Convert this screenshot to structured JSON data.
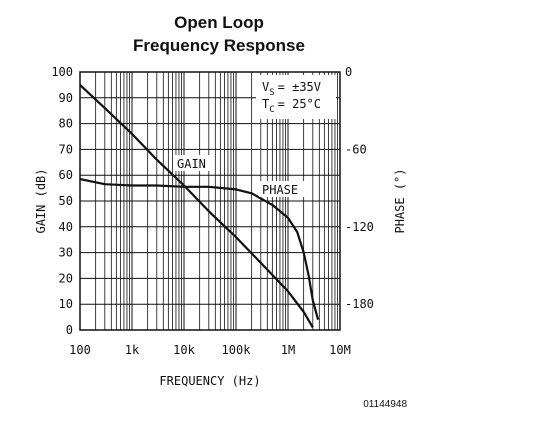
{
  "chart_data": {
    "type": "line",
    "title_line1": "Open Loop",
    "title_line2": "Frequency Response",
    "xlabel": "FREQUENCY (Hz)",
    "ylabel_left": "GAIN (dB)",
    "ylabel_right": "PHASE (°)",
    "x_scale": "log",
    "xlim": [
      100,
      10000000
    ],
    "ylim_left": [
      0,
      100
    ],
    "ylim_right": [
      0,
      -200
    ],
    "x_ticks": [
      {
        "value": 100,
        "label": "100"
      },
      {
        "value": 1000,
        "label": "1k"
      },
      {
        "value": 10000,
        "label": "10k"
      },
      {
        "value": 100000,
        "label": "100k"
      },
      {
        "value": 1000000,
        "label": "1M"
      },
      {
        "value": 10000000,
        "label": "10M"
      }
    ],
    "y_ticks_left": [
      {
        "value": 0,
        "label": "0"
      },
      {
        "value": 10,
        "label": "10"
      },
      {
        "value": 20,
        "label": "20"
      },
      {
        "value": 30,
        "label": "30"
      },
      {
        "value": 40,
        "label": "40"
      },
      {
        "value": 50,
        "label": "50"
      },
      {
        "value": 60,
        "label": "60"
      },
      {
        "value": 70,
        "label": "70"
      },
      {
        "value": 80,
        "label": "80"
      },
      {
        "value": 90,
        "label": "90"
      },
      {
        "value": 100,
        "label": "100"
      }
    ],
    "y_ticks_right": [
      {
        "value": 0,
        "label": "0"
      },
      {
        "value": -60,
        "label": "-60"
      },
      {
        "value": -120,
        "label": "-120"
      },
      {
        "value": -180,
        "label": "-180"
      }
    ],
    "grid": true,
    "series": [
      {
        "name": "GAIN",
        "axis": "left",
        "x": [
          100,
          300,
          1000,
          3000,
          10000,
          30000,
          100000,
          300000,
          1000000,
          2000000,
          3000000
        ],
        "y": [
          95,
          86,
          76,
          66,
          56,
          46,
          36,
          26,
          15,
          7,
          1
        ]
      },
      {
        "name": "PHASE",
        "axis": "right",
        "x": [
          100,
          300,
          1000,
          3000,
          10000,
          30000,
          100000,
          200000,
          500000,
          1000000,
          1500000,
          2000000,
          2500000,
          3000000,
          3800000
        ],
        "y": [
          -83,
          -87,
          -88,
          -88,
          -89,
          -89,
          -91,
          -94,
          -103,
          -113,
          -124,
          -140,
          -158,
          -177,
          -192
        ]
      }
    ],
    "annotations": {
      "vs_prefix": "V",
      "vs_sub": "S",
      "vs_value": "= ±35V",
      "tc_prefix": "T",
      "tc_sub": "C",
      "tc_value": "= 25°C"
    },
    "footer_code": "01144948"
  }
}
